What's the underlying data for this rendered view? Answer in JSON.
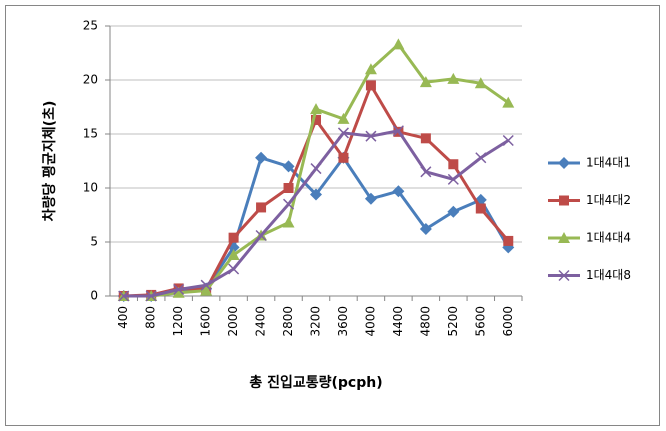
{
  "chart_data": {
    "type": "line",
    "x_label": "총 진입교통량(pcph)",
    "y_label": "차량당 평균지체(초)",
    "categories": [
      "400",
      "800",
      "1200",
      "1600",
      "2000",
      "2400",
      "2800",
      "3200",
      "3600",
      "4000",
      "4400",
      "4800",
      "5200",
      "5600",
      "6000"
    ],
    "series": [
      {
        "name": "1대4대1",
        "color": "#4a7ebb",
        "marker": "diamond",
        "values": [
          0,
          0,
          0.5,
          0.7,
          4.5,
          12.8,
          12,
          9.4,
          12.8,
          9,
          9.7,
          6.2,
          7.8,
          8.9,
          4.5
        ]
      },
      {
        "name": "1대4대2",
        "color": "#be4b48",
        "marker": "square",
        "values": [
          0,
          0.1,
          0.7,
          0.6,
          5.4,
          8.2,
          10,
          16.3,
          12.8,
          19.5,
          15.2,
          14.6,
          12.2,
          8.1,
          5.1
        ]
      },
      {
        "name": "1대4대4",
        "color": "#98b954",
        "marker": "triangle",
        "values": [
          0,
          0,
          0.3,
          0.5,
          3.8,
          5.6,
          6.8,
          17.3,
          16.4,
          21,
          23.3,
          19.8,
          20.1,
          19.7,
          17.9
        ]
      },
      {
        "name": "1대4대8",
        "color": "#7d60a0",
        "marker": "x",
        "values": [
          0,
          0,
          0.6,
          1.0,
          2.5,
          5.6,
          8.5,
          11.8,
          15.1,
          14.8,
          15.3,
          11.5,
          10.8,
          12.8,
          14.4
        ]
      }
    ],
    "ylim": [
      0,
      25
    ],
    "yticks": [
      0,
      5,
      10,
      15,
      20,
      25
    ],
    "grid": true,
    "legend": "right"
  }
}
